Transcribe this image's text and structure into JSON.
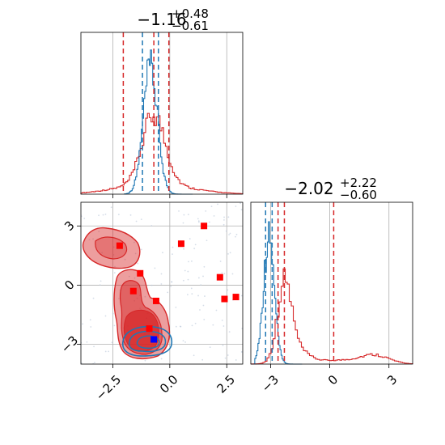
{
  "chart_data": {
    "type": "corner",
    "colors": {
      "red": "#d62728",
      "blue": "#1f77b4",
      "marker_red": "#ff0000",
      "marker_blue": "#0000ff"
    },
    "panels": [
      {
        "id": "hist-param1",
        "type": "histogram",
        "title": {
          "value": "−1.16",
          "sup": "+0.48",
          "sub": "−0.61"
        },
        "xlim": [
          -3.9,
          3.2
        ],
        "grid": true,
        "quantiles_red": [
          -2.04,
          -0.7,
          -0.04
        ],
        "quantiles_blue": [
          -1.2,
          -0.5
        ]
      },
      {
        "id": "hist-param2",
        "type": "histogram",
        "title": {
          "value": "−2.02",
          "sup": "+2.22",
          "sub": "−0.60"
        },
        "xlim": [
          -4.0,
          4.2
        ],
        "xticks": [
          -3,
          0,
          3
        ],
        "xtick_labels": [
          "−3",
          "0",
          "3"
        ],
        "grid": true,
        "quantiles_red": [
          -2.62,
          -2.3,
          0.2
        ],
        "quantiles_blue": [
          -3.25,
          -2.92
        ]
      },
      {
        "id": "scatter-2d",
        "type": "contour-scatter",
        "xlim": [
          -3.9,
          3.2
        ],
        "ylim": [
          -4.0,
          4.2
        ],
        "xticks": [
          -2.5,
          0.0,
          2.5
        ],
        "xtick_labels": [
          "−2.5",
          "0.0",
          "2.5"
        ],
        "yticks": [
          3,
          0,
          -3
        ],
        "ytick_labels": [
          "3",
          "0",
          "−3"
        ],
        "grid": true,
        "red_markers": [
          [
            -2.2,
            2.0
          ],
          [
            0.5,
            2.1
          ],
          [
            1.5,
            3.0
          ],
          [
            -1.3,
            0.6
          ],
          [
            -1.6,
            -0.3
          ],
          [
            2.2,
            0.4
          ],
          [
            -0.6,
            -0.8
          ],
          [
            2.4,
            -0.7
          ],
          [
            2.9,
            -0.6
          ],
          [
            -0.9,
            -2.2
          ]
        ],
        "blue_markers": [
          [
            -0.7,
            -2.75
          ]
        ]
      }
    ]
  }
}
